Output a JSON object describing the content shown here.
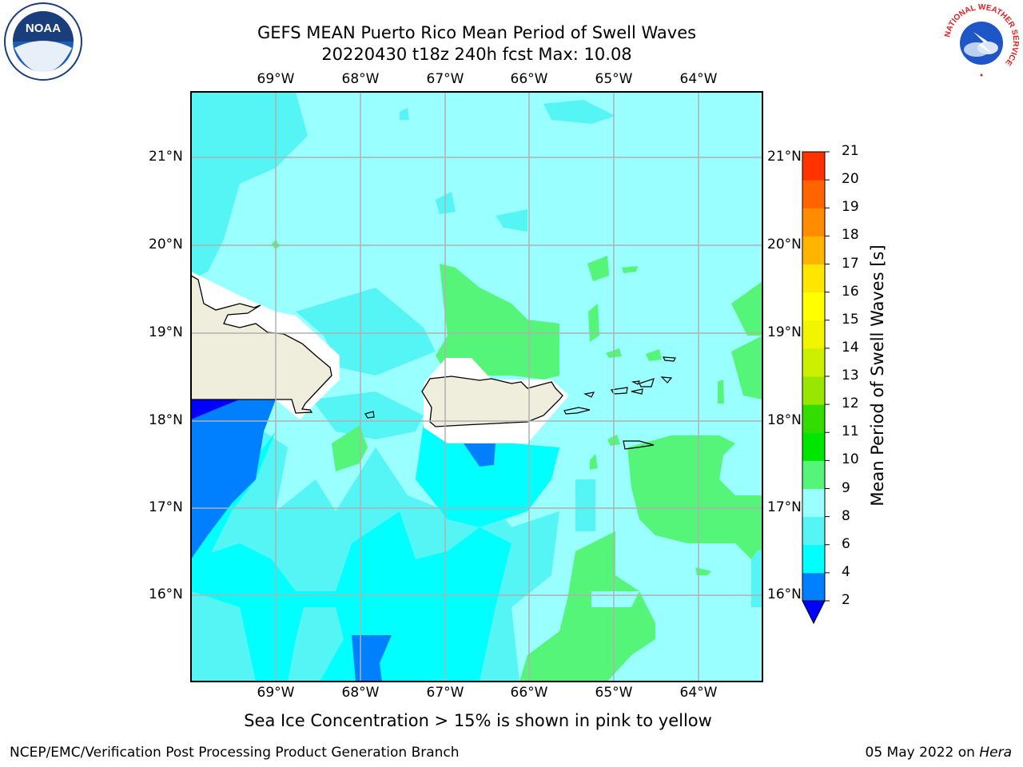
{
  "header": {
    "title_line1": "GEFS MEAN Puerto Rico Mean Period of Swell Waves",
    "title_line2": "20220430 t18z 240h fcst   Max: 10.08"
  },
  "logos": {
    "noaa_text": "NOAA",
    "nws_ring_text": "NATIONAL WEATHER SERVICE"
  },
  "map": {
    "lon_labels": [
      "69°W",
      "68°W",
      "67°W",
      "66°W",
      "65°W",
      "64°W"
    ],
    "lat_labels": [
      "21°N",
      "20°N",
      "19°N",
      "18°N",
      "17°N",
      "16°N"
    ],
    "land_color": "#efeddb",
    "grid_color": "#b0b0b0"
  },
  "colorbar": {
    "title": "Mean Period of Swell Waves [s]",
    "ticks": [
      "21",
      "20",
      "19",
      "18",
      "17",
      "16",
      "15",
      "14",
      "13",
      "12",
      "11",
      "10",
      "9",
      "8",
      "6",
      "4",
      "2"
    ],
    "colors": [
      "#0000ff",
      "#0080ff",
      "#00ffff",
      "#55f5f5",
      "#99ffff",
      "#55f57a",
      "#00e600",
      "#33dd00",
      "#99e600",
      "#ccf000",
      "#f2f500",
      "#ffff00",
      "#ffe600",
      "#ffb400",
      "#ff8c00",
      "#ff6400",
      "#ff3200",
      "#ff0000"
    ]
  },
  "note": "Sea Ice Concentration > 15% is shown in pink to yellow",
  "footer": {
    "left": "NCEP/EMC/Verification Post Processing Product Generation Branch",
    "date": "05 May 2022 on ",
    "machine": "Hera"
  }
}
